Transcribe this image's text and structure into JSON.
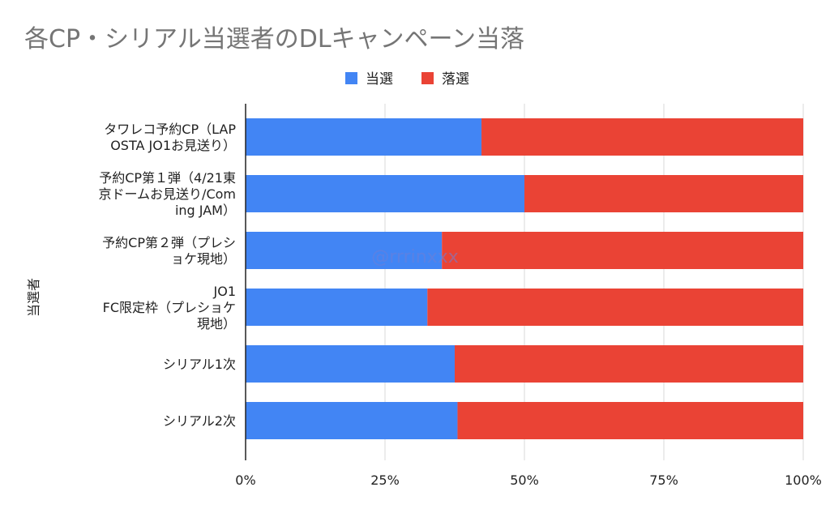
{
  "chart_data": {
    "type": "bar",
    "orientation": "horizontal",
    "stacked": "percent",
    "title": "各CP・シリアル当選者のDLキャンペーン当落",
    "ylabel": "当選者",
    "xlabel": "",
    "xlim": [
      0,
      100
    ],
    "x_ticks": [
      "0%",
      "25%",
      "50%",
      "75%",
      "100%"
    ],
    "x_tick_values": [
      0,
      25,
      50,
      75,
      100
    ],
    "legend_position": "top",
    "categories": [
      [
        "タワレコ予約CP（LAP",
        "OSTA JO1お見送り）"
      ],
      [
        "予約CP第１弾（4/21東",
        "京ドームお見送り/Com",
        "ing JAM）"
      ],
      [
        "予約CP第２弾（プレシ",
        "ョケ現地）"
      ],
      [
        "JO1",
        "FC限定枠（プレショケ",
        "現地）"
      ],
      [
        "シリアル1次"
      ],
      [
        "シリアル2次"
      ]
    ],
    "series": [
      {
        "name": "当選",
        "color": "#4285f4",
        "values": [
          42.3,
          50.0,
          35.2,
          32.6,
          37.5,
          38.0
        ]
      },
      {
        "name": "落選",
        "color": "#ea4335",
        "values": [
          57.7,
          50.0,
          64.8,
          67.4,
          62.5,
          62.0
        ]
      }
    ],
    "grid": true,
    "watermark": "@rrrinxxx"
  }
}
